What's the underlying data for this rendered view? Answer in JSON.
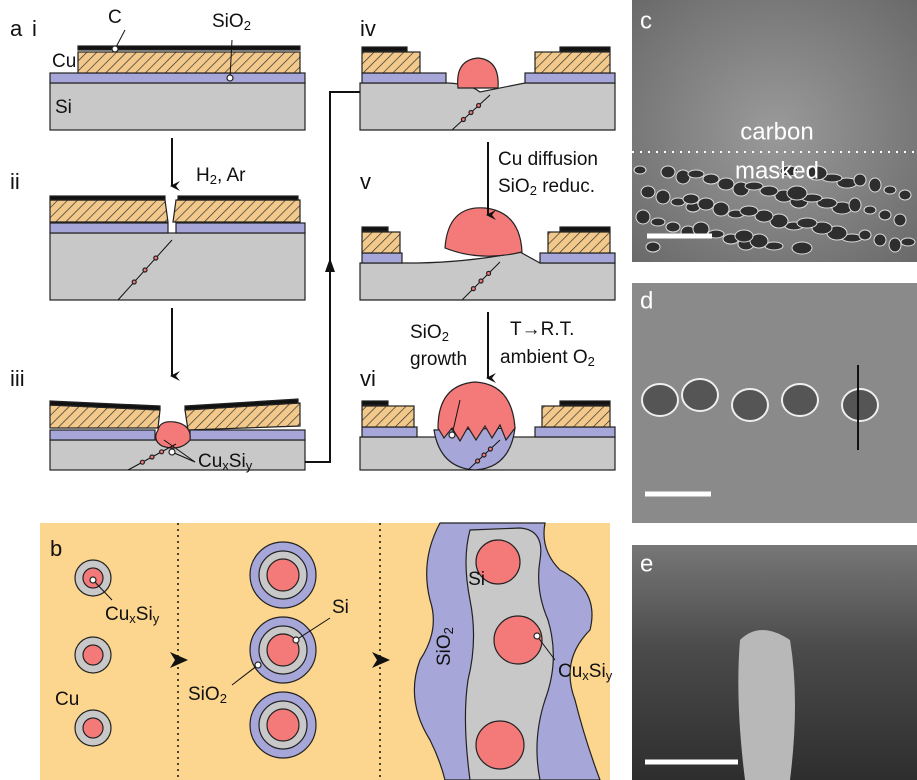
{
  "panel_labels": {
    "a": "a",
    "b": "b",
    "c": "c",
    "d": "d",
    "e": "e"
  },
  "panel_a": {
    "steps": [
      "i",
      "ii",
      "iii",
      "iv",
      "v",
      "vi"
    ],
    "layer_labels": {
      "carbon": "C",
      "oxide": [
        "SiO",
        "2"
      ],
      "copper": "Cu",
      "silicon": "Si"
    },
    "arrow_labels": {
      "anneal": [
        "H",
        "2",
        ", Ar"
      ],
      "diffusion": "Cu diffusion",
      "reduction": [
        "SiO",
        "2",
        " reduc."
      ],
      "cooling": "T→R.T.",
      "oxygen": [
        "ambient O",
        "2"
      ]
    },
    "growth_labels": {
      "oxide": [
        "SiO",
        "2"
      ],
      "word": "growth"
    },
    "silicide": [
      "Cu",
      "x",
      "Si",
      "y"
    ]
  },
  "panel_b": {
    "copper": "Cu",
    "silicide_left": [
      "Cu",
      "x",
      "Si",
      "y"
    ],
    "silicon_mid": "Si",
    "oxide_mid": [
      "SiO",
      "2"
    ],
    "oxide_right": [
      "SiO",
      "2"
    ],
    "silicon_right": "Si",
    "silicide_right": [
      "Cu",
      "x",
      "Si",
      "y"
    ]
  },
  "panel_c": {
    "upper": "carbon",
    "lower": "masked"
  }
}
